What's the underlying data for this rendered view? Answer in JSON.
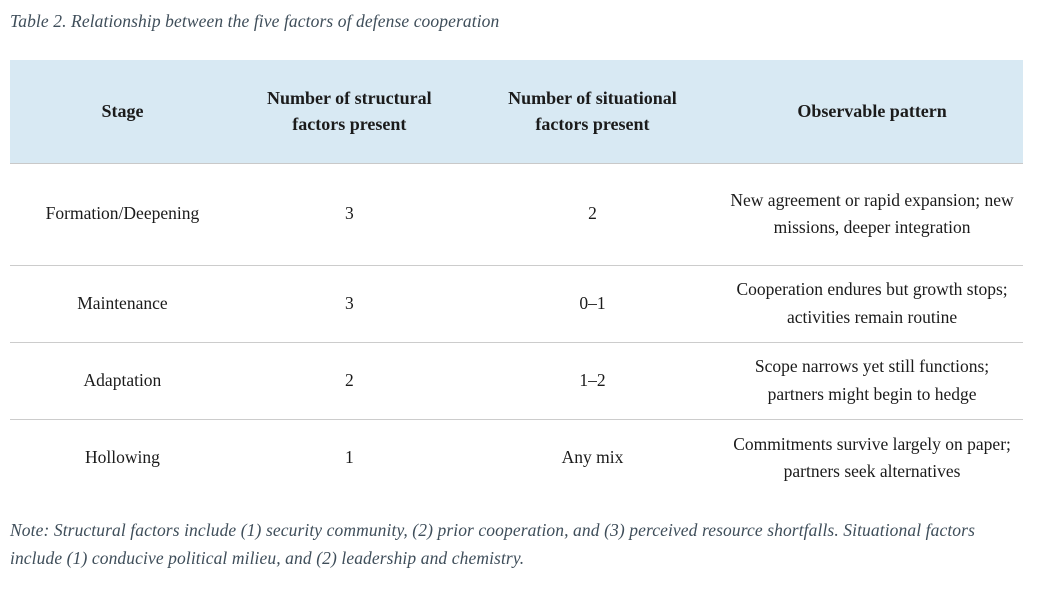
{
  "page": {
    "title": "Table 2. Relationship between the five factors of defense cooperation",
    "note": "Note: Structural factors include (1) security community, (2) prior cooperation, and (3) perceived resource shortfalls. Situational factors include (1) conducive political milieu, and (2) leadership and chemistry."
  },
  "colors": {
    "background": "#ffffff",
    "header_bg": "#d8e9f3",
    "body_text": "#1b1b1b",
    "caption_text": "#3f4e5a",
    "divider": "#cccccc"
  },
  "chart_data": {
    "type": "table",
    "title": "Table 2. Relationship between the five factors of defense cooperation",
    "headers": [
      "Stage",
      "Number of structural factors present",
      "Number of situational factors present",
      "Observable pattern"
    ],
    "rows": [
      [
        "Formation/Deepening",
        "3",
        "2",
        "New agreement or rapid expansion; new missions, deeper integration"
      ],
      [
        "Maintenance",
        "3",
        "0–1",
        "Cooperation endures but growth stops; activities remain routine"
      ],
      [
        "Adaptation",
        "2",
        "1–2",
        "Scope narrows yet still functions; partners might begin to hedge"
      ],
      [
        "Hollowing",
        "1",
        "Any mix",
        "Commitments survive largely on paper; partners seek alternatives"
      ]
    ]
  },
  "table": {
    "headers": {
      "stage": "Stage",
      "structural": "Number of structural factors present",
      "situational": "Number of situational factors present",
      "pattern": "Observable pattern"
    },
    "rows": [
      {
        "stage": "Formation/Deepening",
        "structural": "3",
        "situational": "2",
        "pattern": "New agreement or rapid expansion; new missions, deeper integration"
      },
      {
        "stage": "Maintenance",
        "structural": "3",
        "situational": "0–1",
        "pattern": "Cooperation endures but growth stops; activities remain routine"
      },
      {
        "stage": "Adaptation",
        "structural": "2",
        "situational": "1–2",
        "pattern": "Scope narrows yet still functions; partners might begin to hedge"
      },
      {
        "stage": "Hollowing",
        "structural": "1",
        "situational": "Any mix",
        "pattern": "Commitments survive largely on paper; partners seek alternatives"
      }
    ]
  }
}
